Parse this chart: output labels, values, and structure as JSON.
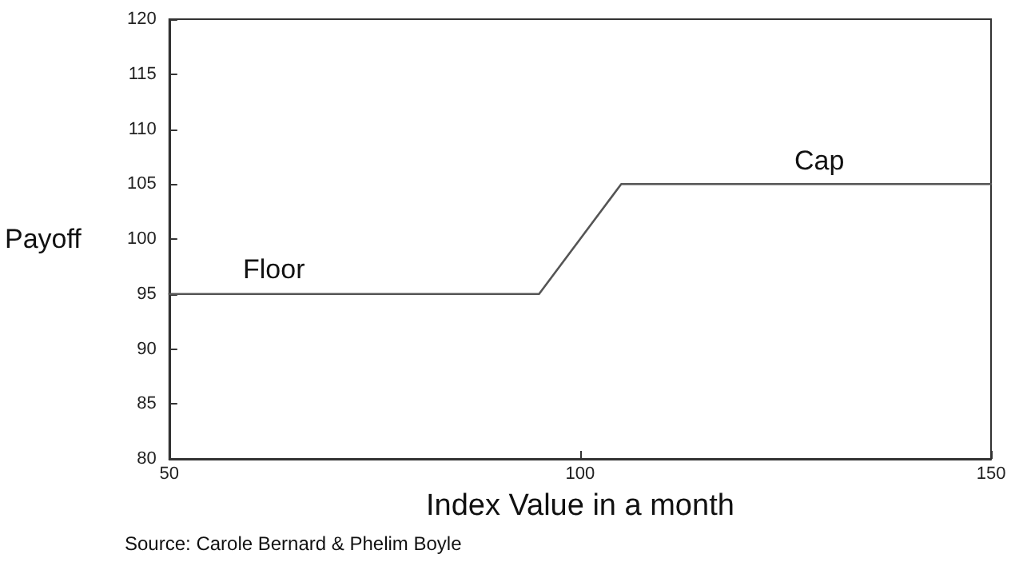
{
  "chart_data": {
    "type": "line",
    "xlabel": "Index Value in a month",
    "ylabel": "Payoff",
    "x": [
      50,
      95,
      105,
      150
    ],
    "series": [
      {
        "color": "#555555",
        "values": [
          95,
          95,
          105,
          105
        ]
      }
    ],
    "xlim": [
      50,
      150
    ],
    "xticks": [
      50,
      100,
      150
    ],
    "ylim": [
      80,
      120
    ],
    "yticks": [
      80,
      85,
      90,
      95,
      100,
      105,
      110,
      115,
      120
    ],
    "grid": false,
    "marker": "none",
    "line_style": "solid",
    "annotations": [
      "Floor",
      "Cap",
      "Source: Carole Bernard & Phelim Boyle"
    ]
  }
}
